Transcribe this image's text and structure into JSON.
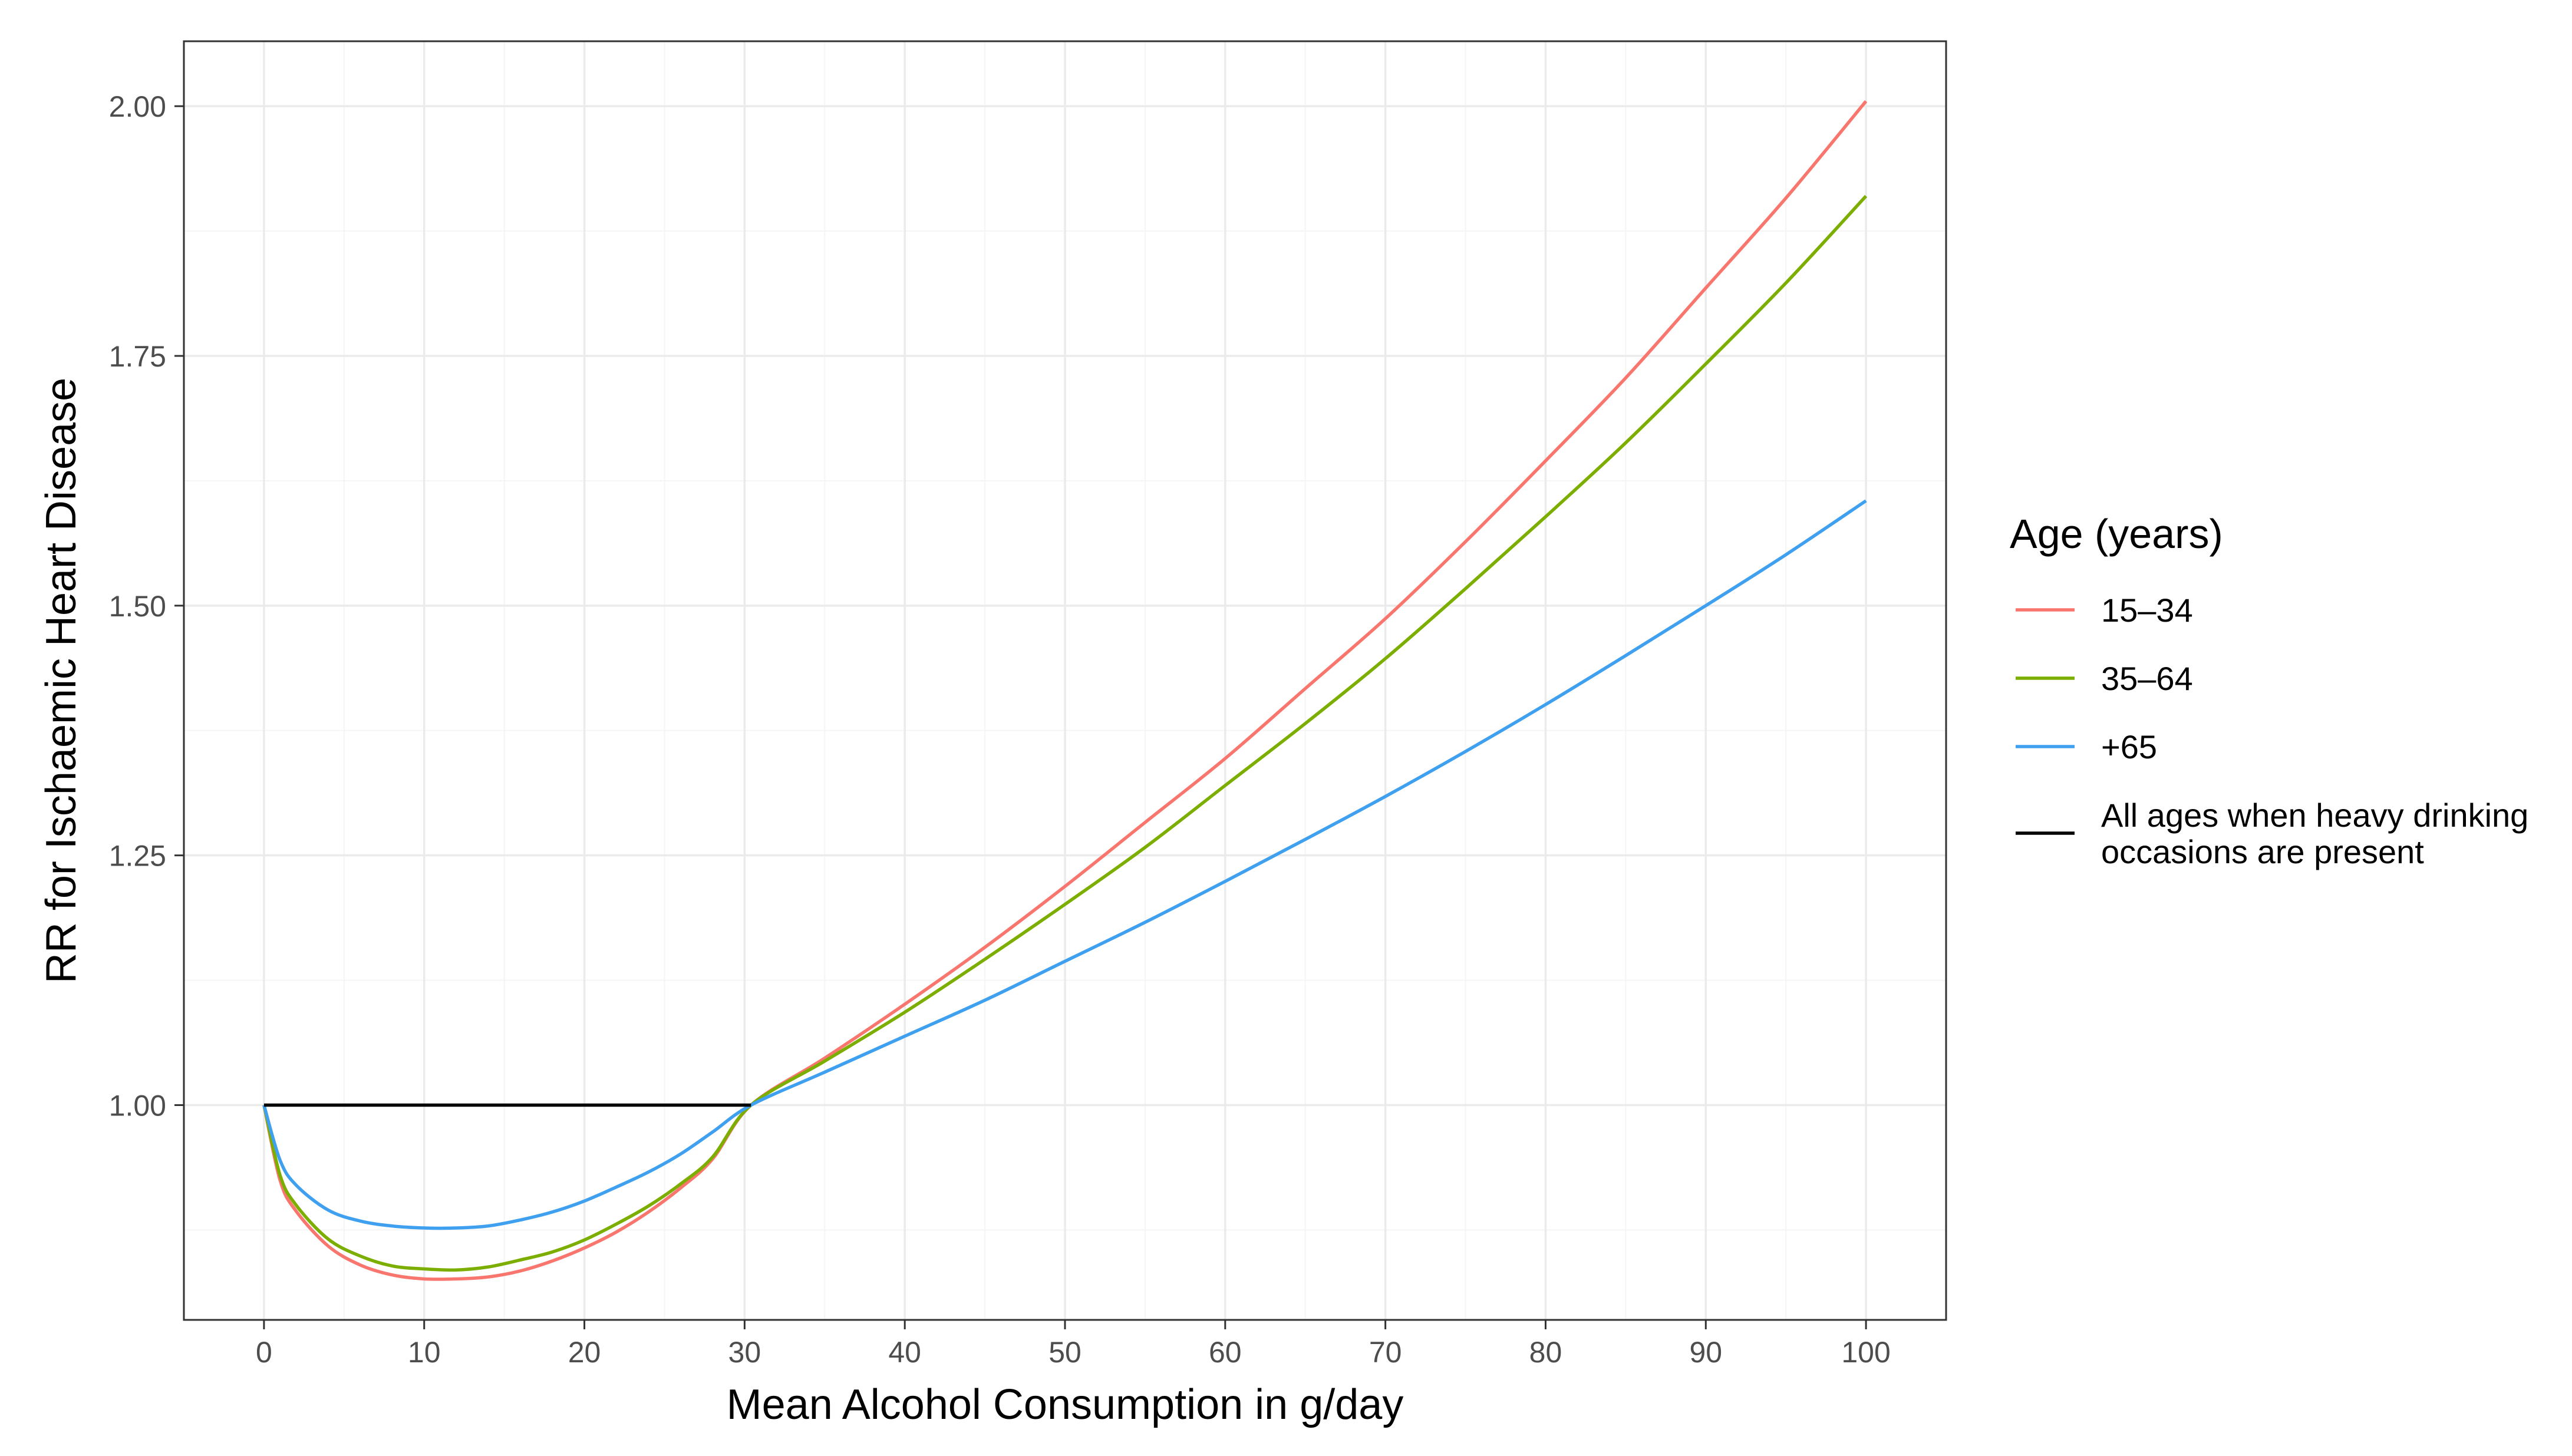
{
  "chart_data": {
    "type": "line",
    "title": "",
    "xlabel": "Mean Alcohol Consumption in g/day",
    "ylabel": "RR for Ischaemic Heart Disease",
    "xlim": [
      -5,
      105
    ],
    "ylim": [
      0.785,
      2.065
    ],
    "x_ticks": [
      0,
      10,
      20,
      30,
      40,
      50,
      60,
      70,
      80,
      90,
      100
    ],
    "x_tick_labels": [
      "0",
      "10",
      "20",
      "30",
      "40",
      "50",
      "60",
      "70",
      "80",
      "90",
      "100"
    ],
    "y_ticks": [
      1.0,
      1.25,
      1.5,
      1.75,
      2.0
    ],
    "y_tick_labels": [
      "1.00",
      "1.25",
      "1.50",
      "1.75",
      "2.00"
    ],
    "grid": true,
    "legend_title": "Age (years)",
    "legend_position": "right",
    "series": [
      {
        "name": "15–34",
        "color": "#F8766D",
        "x": [
          0,
          1,
          2,
          4,
          6,
          8,
          10,
          12,
          14,
          16,
          18,
          20,
          22,
          24,
          26,
          28,
          30.4,
          35,
          40,
          45,
          50,
          55,
          60,
          65,
          70,
          75,
          80,
          85,
          90,
          95,
          100
        ],
        "y": [
          1.0,
          0.925,
          0.894,
          0.859,
          0.84,
          0.83,
          0.826,
          0.826,
          0.828,
          0.834,
          0.844,
          0.857,
          0.873,
          0.893,
          0.917,
          0.946,
          1.0,
          1.047,
          1.101,
          1.158,
          1.219,
          1.283,
          1.347,
          1.417,
          1.487,
          1.564,
          1.645,
          1.728,
          1.818,
          1.908,
          2.005
        ]
      },
      {
        "name": "35–64",
        "color": "#7CAE00",
        "x": [
          0,
          1,
          2,
          4,
          6,
          8,
          10,
          12,
          14,
          16,
          18,
          20,
          22,
          24,
          26,
          28,
          30.4,
          35,
          40,
          45,
          50,
          55,
          60,
          65,
          70,
          75,
          80,
          85,
          90,
          95,
          100
        ],
        "y": [
          1.0,
          0.93,
          0.9,
          0.866,
          0.849,
          0.839,
          0.836,
          0.835,
          0.838,
          0.845,
          0.853,
          0.865,
          0.881,
          0.899,
          0.921,
          0.948,
          1.0,
          1.044,
          1.093,
          1.146,
          1.201,
          1.258,
          1.32,
          1.382,
          1.447,
          1.517,
          1.589,
          1.663,
          1.742,
          1.823,
          1.91
        ]
      },
      {
        "name": "+65",
        "color": "#3FA0F0",
        "x": [
          0,
          1,
          2,
          4,
          6,
          8,
          10,
          12,
          14,
          16,
          18,
          20,
          22,
          24,
          26,
          28,
          30.4,
          35,
          40,
          45,
          50,
          55,
          60,
          65,
          70,
          75,
          80,
          85,
          90,
          95,
          100
        ],
        "y": [
          1.0,
          0.945,
          0.92,
          0.895,
          0.884,
          0.879,
          0.877,
          0.877,
          0.879,
          0.885,
          0.893,
          0.904,
          0.918,
          0.933,
          0.951,
          0.973,
          1.0,
          1.033,
          1.069,
          1.105,
          1.144,
          1.183,
          1.224,
          1.266,
          1.309,
          1.354,
          1.401,
          1.45,
          1.5,
          1.551,
          1.605
        ]
      },
      {
        "name": "All ages when heavy drinking occasions are present",
        "legend_lines": [
          "All ages when heavy drinking",
          "occasions are present"
        ],
        "color": "#000000",
        "x": [
          0,
          30.4
        ],
        "y": [
          1.0,
          1.0
        ]
      }
    ]
  },
  "colors": {
    "background": "#FFFFFF",
    "grid_major": "#EBEBEB",
    "grid_minor": "#F5F5F5",
    "panel_border": "#333333",
    "tick_text": "#4D4D4D"
  }
}
